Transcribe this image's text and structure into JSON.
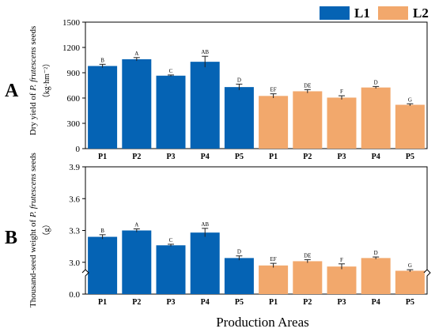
{
  "legend": {
    "items": [
      {
        "label": "L1",
        "color": "#0563b4"
      },
      {
        "label": "L2",
        "color": "#f2a86c"
      }
    ]
  },
  "xlabel": "Production Areas",
  "chart_data": [
    {
      "panel_letter": "A",
      "type": "bar",
      "categories": [
        "P1",
        "P2",
        "P3",
        "P4",
        "P5",
        "P1",
        "P2",
        "P3",
        "P4",
        "P5"
      ],
      "groups": [
        "L1",
        "L1",
        "L1",
        "L1",
        "L1",
        "L2",
        "L2",
        "L2",
        "L2",
        "L2"
      ],
      "values": [
        980,
        1060,
        865,
        1030,
        730,
        625,
        680,
        605,
        725,
        520
      ],
      "errors": [
        20,
        20,
        8,
        65,
        35,
        25,
        20,
        22,
        12,
        12
      ],
      "sig_letters": [
        "B",
        "A",
        "C",
        "AB",
        "D",
        "EF",
        "DE",
        "F",
        "D",
        "G"
      ],
      "ylabel_pre": "Dry yield of ",
      "ylabel_species": "P. frutescens",
      "ylabel_post": " seeds",
      "yunit": "（kg·hm⁻²）",
      "ylim": [
        0,
        1500
      ],
      "yticks": [
        "0",
        "300",
        "600",
        "900",
        "1200",
        "1500"
      ],
      "grid": false
    },
    {
      "panel_letter": "B",
      "type": "bar",
      "categories": [
        "P1",
        "P2",
        "P3",
        "P4",
        "P5",
        "P1",
        "P2",
        "P3",
        "P4",
        "P5"
      ],
      "groups": [
        "L1",
        "L1",
        "L1",
        "L1",
        "L1",
        "L2",
        "L2",
        "L2",
        "L2",
        "L2"
      ],
      "values": [
        3.24,
        3.3,
        3.16,
        3.28,
        3.04,
        2.97,
        3.01,
        2.96,
        3.04,
        2.92
      ],
      "errors": [
        0.02,
        0.015,
        0.01,
        0.04,
        0.02,
        0.02,
        0.015,
        0.025,
        0.01,
        0.01
      ],
      "sig_letters": [
        "B",
        "A",
        "C",
        "AB",
        "D",
        "EF",
        "DE",
        "F",
        "D",
        "G"
      ],
      "ylabel_pre": "Thousand-seed weight of ",
      "ylabel_species": "P. frutescens",
      "ylabel_post": " seeds",
      "yunit": "（g）",
      "ylim": [
        2.7,
        3.9
      ],
      "axis_break": true,
      "yticks": [
        "0.0",
        "3.0",
        "3.3",
        "3.6",
        "3.9"
      ],
      "grid": false
    }
  ]
}
